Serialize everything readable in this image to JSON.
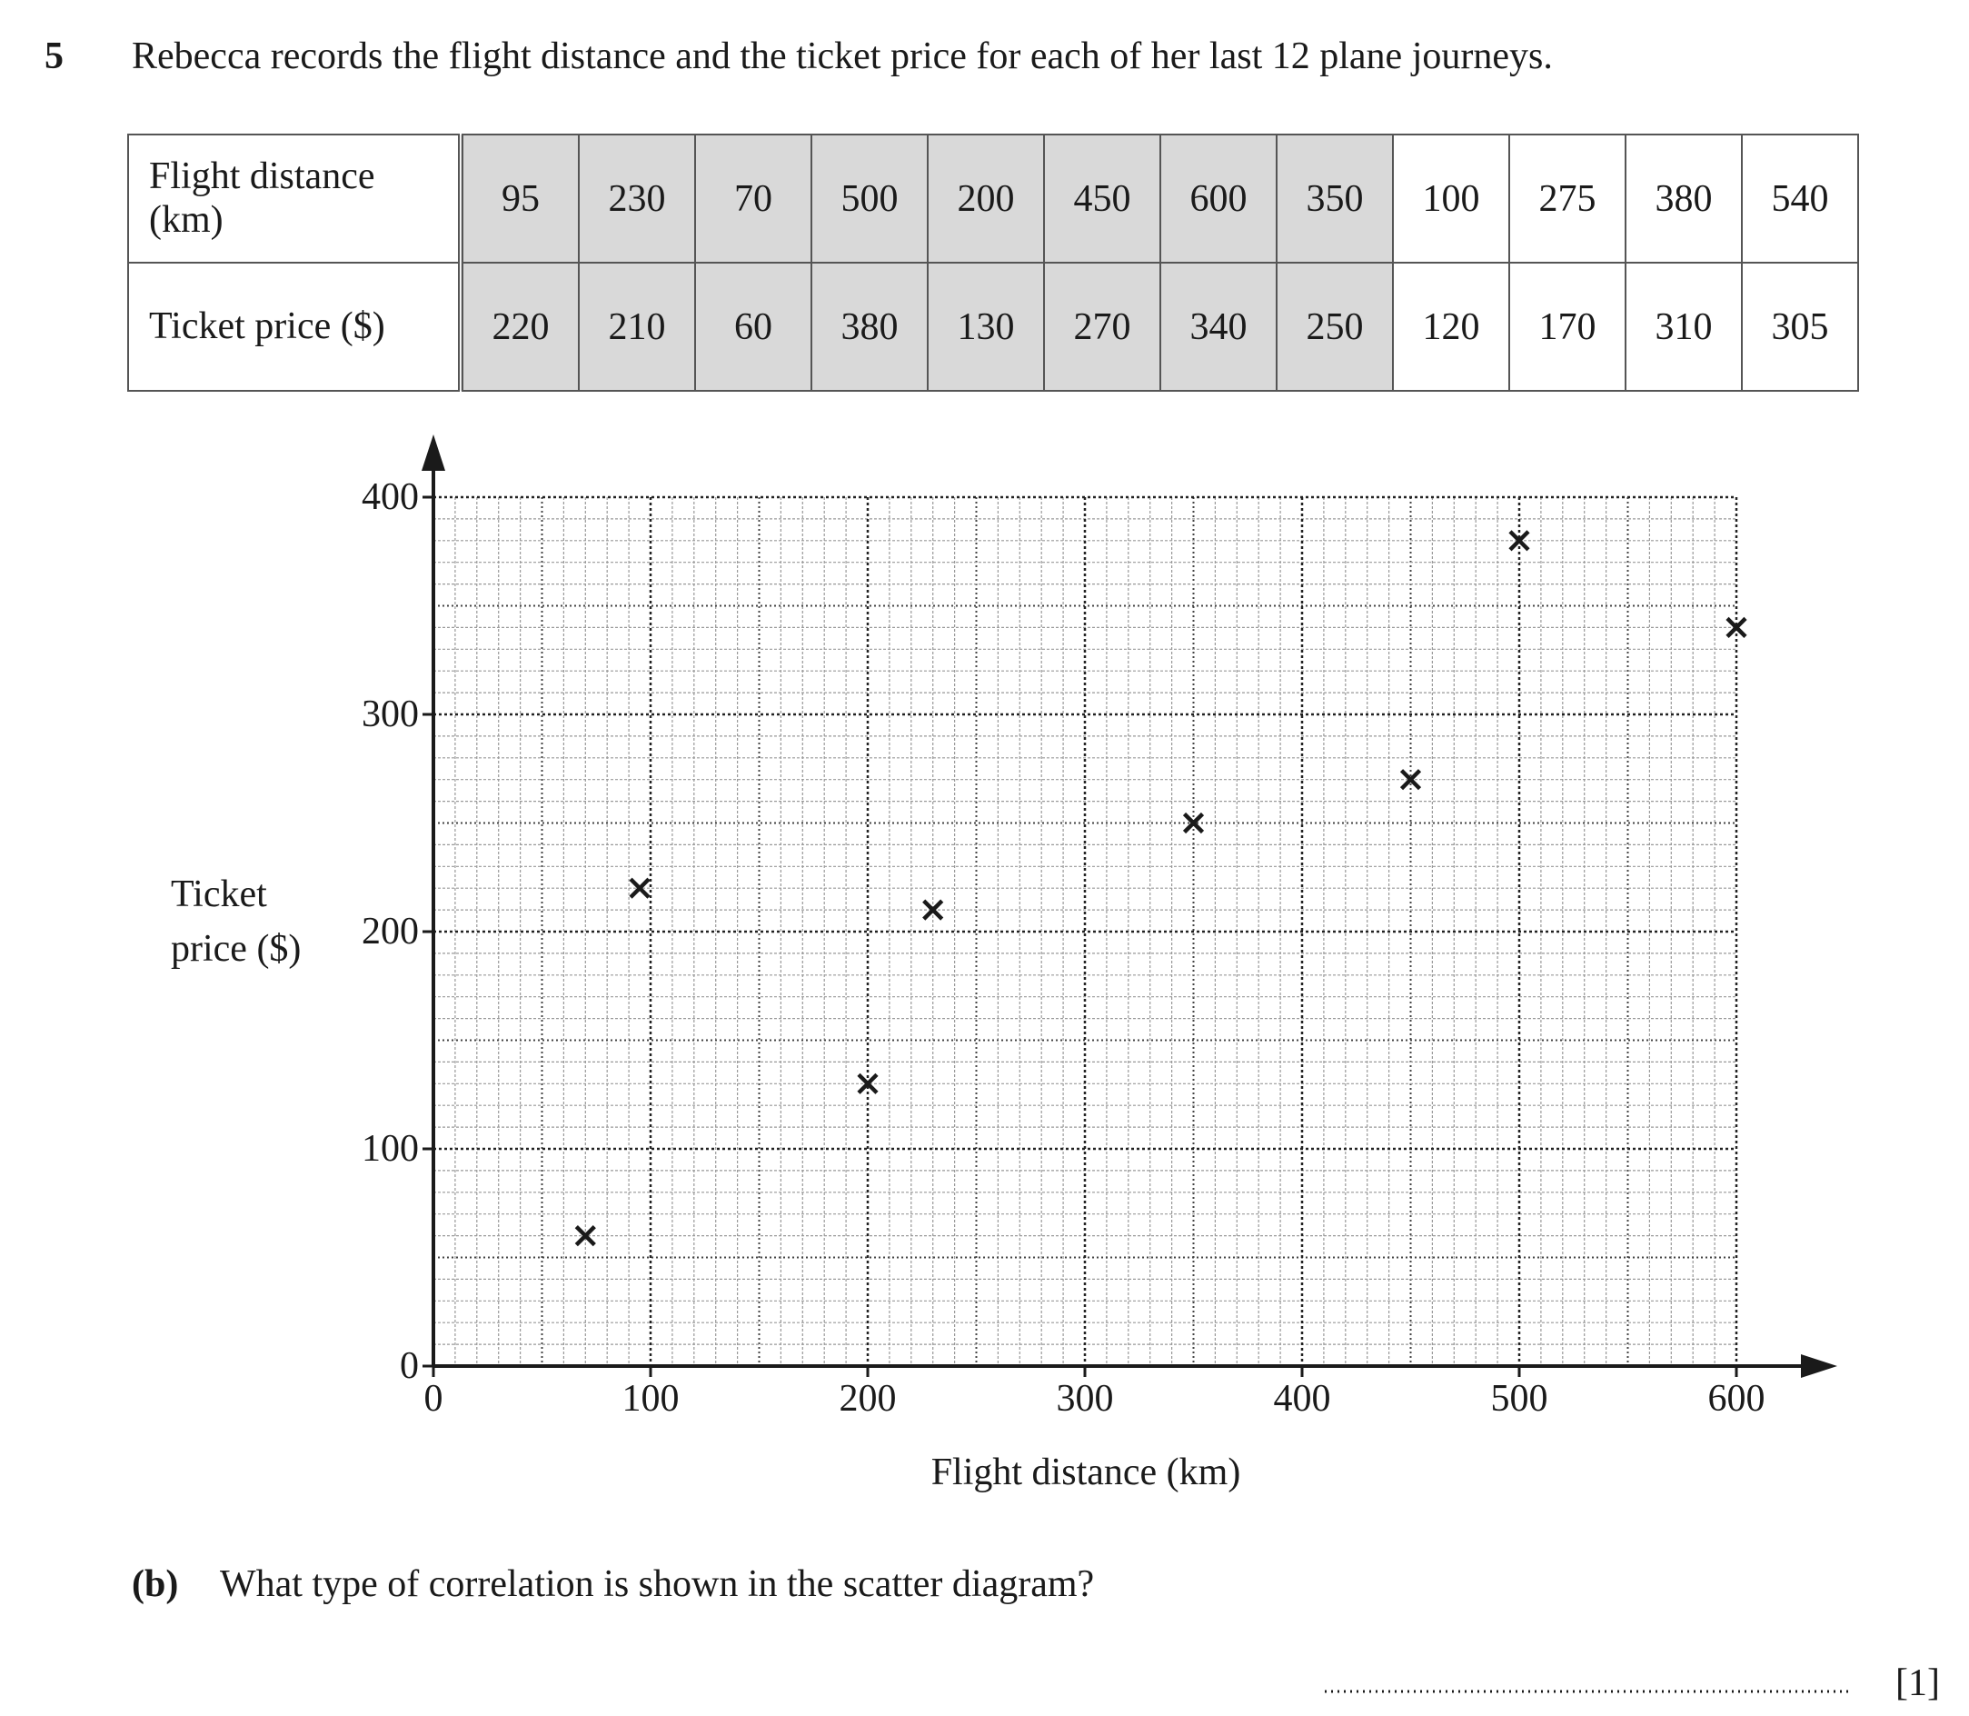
{
  "question": {
    "number": "5",
    "text": "Rebecca records the flight distance and the ticket price for each of her last 12 plane journeys."
  },
  "table": {
    "rows": [
      {
        "label": "Flight distance (km)",
        "values": [
          95,
          230,
          70,
          500,
          200,
          450,
          600,
          350,
          100,
          275,
          380,
          540
        ]
      },
      {
        "label": "Ticket price ($)",
        "values": [
          220,
          210,
          60,
          380,
          130,
          270,
          340,
          250,
          120,
          170,
          310,
          305
        ]
      }
    ],
    "shaded_columns": 8
  },
  "chart_data": {
    "type": "scatter",
    "x_label": "Flight distance (km)",
    "y_label": "Ticket price ($)",
    "x": [
      95,
      230,
      70,
      500,
      200,
      450,
      600,
      350
    ],
    "y": [
      220,
      210,
      60,
      380,
      130,
      270,
      340,
      250
    ],
    "xlim": [
      0,
      600
    ],
    "ylim": [
      0,
      400
    ],
    "xticks": [
      0,
      100,
      200,
      300,
      400,
      500,
      600
    ],
    "yticks": [
      0,
      100,
      200,
      300,
      400
    ],
    "grid": true,
    "color": "#1a1a1a"
  },
  "part_b": {
    "label": "(b)",
    "text": "What type of correlation is shown in the scatter diagram?",
    "marks": "[1]"
  }
}
